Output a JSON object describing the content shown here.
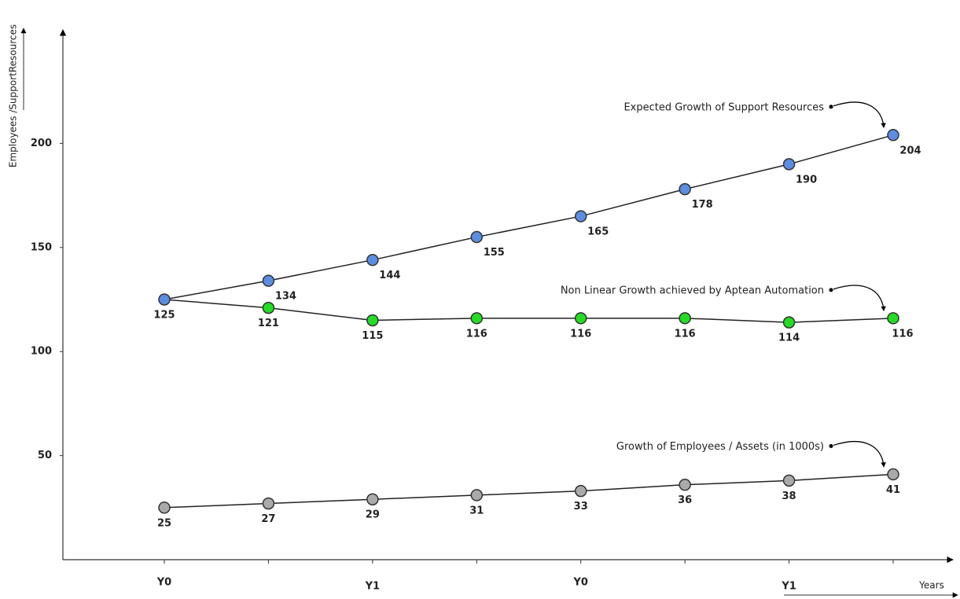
{
  "chart_data": {
    "type": "line",
    "y_label": "Employees /SupportResources",
    "x_label": "Years",
    "categories": [
      "Y0",
      null,
      "Y1",
      null,
      "Y0",
      null,
      "Y1",
      null
    ],
    "series": [
      {
        "name": "Expected Growth of Support Resources",
        "color": "#5b8de0",
        "values": [
          125,
          134,
          144,
          155,
          165,
          178,
          190,
          204
        ]
      },
      {
        "name": "Non Linear Growth achieved by Aptean Automation",
        "color": "#22dd22",
        "values": [
          125,
          121,
          115,
          116,
          116,
          116,
          114,
          116
        ]
      },
      {
        "name": "Growth of Employees / Assets (in 1000s)",
        "color": "#aaaaaa",
        "values": [
          25,
          27,
          29,
          31,
          33,
          36,
          38,
          41
        ]
      }
    ],
    "ylim": [
      0,
      250
    ],
    "yticks": [
      50,
      100,
      150,
      200
    ],
    "grid": false
  }
}
